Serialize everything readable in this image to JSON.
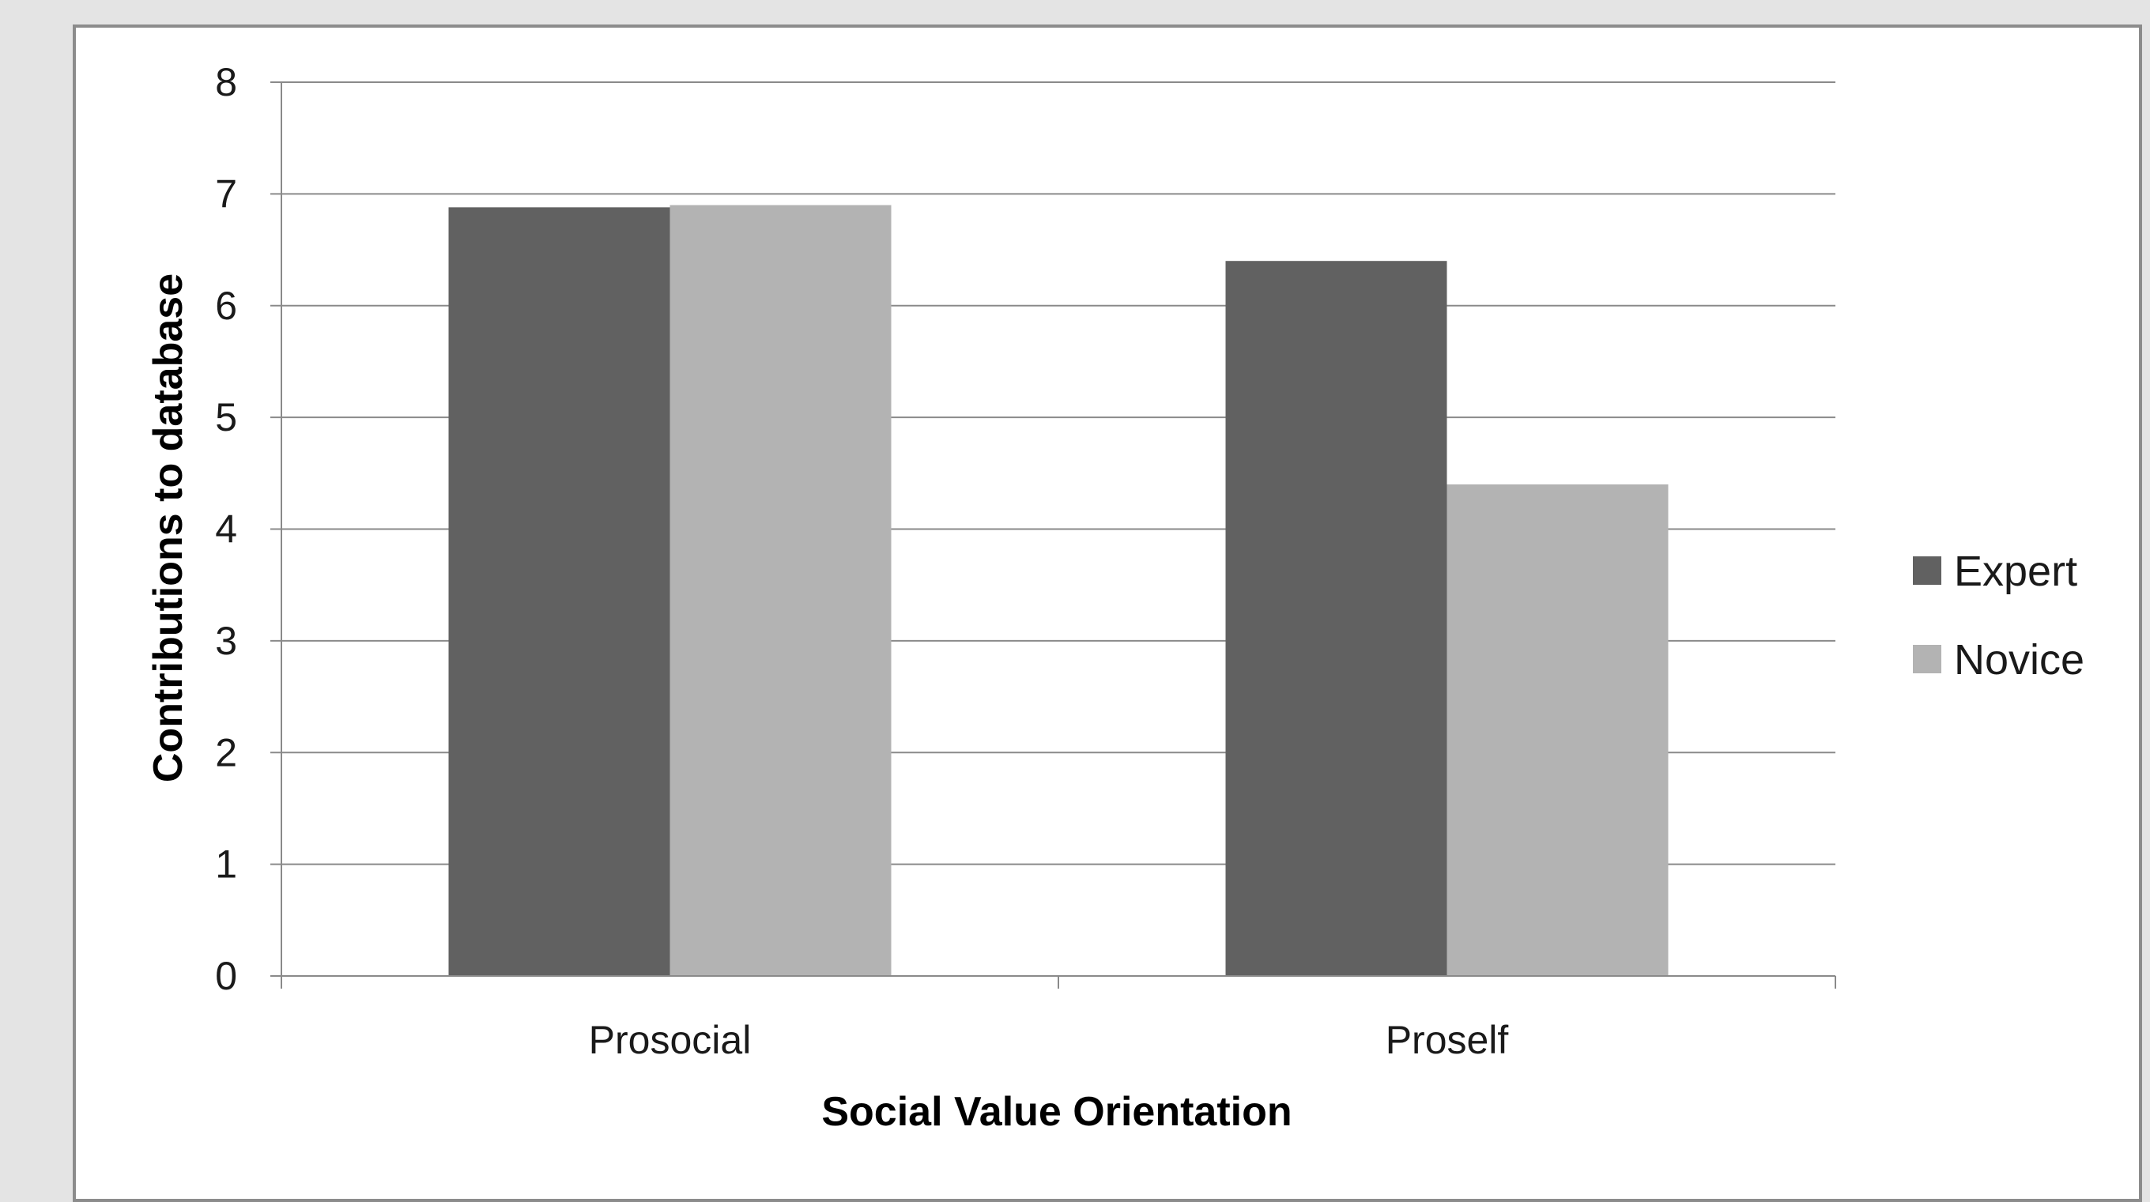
{
  "chart_data": {
    "type": "bar",
    "title": "",
    "xlabel": "Social Value Orientation",
    "ylabel": "Contributions to database",
    "categories": [
      "Prosocial",
      "Proself"
    ],
    "series": [
      {
        "name": "Expert",
        "values": [
          6.88,
          6.4
        ],
        "color": "#616161"
      },
      {
        "name": "Novice",
        "values": [
          6.9,
          4.4
        ],
        "color": "#b3b3b3"
      }
    ],
    "ylim": [
      0,
      8
    ],
    "yticks": [
      "0",
      "1",
      "2",
      "3",
      "4",
      "5",
      "6",
      "7",
      "8"
    ],
    "grid": true,
    "legend_position": "right"
  }
}
